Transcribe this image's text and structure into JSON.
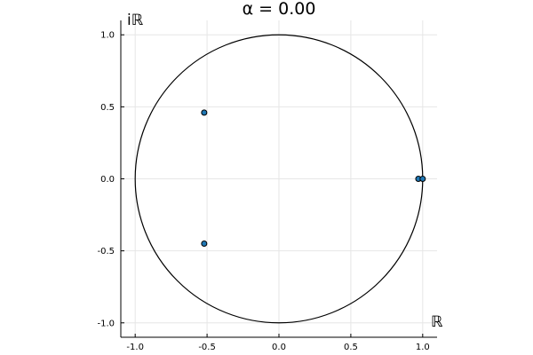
{
  "chart_data": {
    "type": "scatter",
    "title": "α = 0.00",
    "xlabel": "ℝ",
    "ylabel": "iℝ",
    "xlim": [
      -1.1,
      1.1
    ],
    "ylim": [
      -1.1,
      1.1
    ],
    "xticks": [
      -1.0,
      -0.5,
      0.0,
      0.5,
      1.0
    ],
    "xtick_labels": [
      "-1.0",
      "-0.5",
      "0.0",
      "0.5",
      "1.0"
    ],
    "yticks": [
      -1.0,
      -0.5,
      0.0,
      0.5,
      1.0
    ],
    "ytick_labels": [
      "-1.0",
      "-0.5",
      "0.0",
      "0.5",
      "1.0"
    ],
    "grid": true,
    "aspect": "equal",
    "unit_circle": {
      "center": [
        0,
        0
      ],
      "radius": 1
    },
    "series": [
      {
        "points": [
          {
            "x": -0.52,
            "y": 0.46
          },
          {
            "x": -0.52,
            "y": -0.45
          },
          {
            "x": 0.97,
            "y": 0.0
          },
          {
            "x": 1.0,
            "y": 0.0
          }
        ]
      }
    ],
    "colors": {
      "marker_fill": "#1f77b4",
      "marker_edge": "#000000",
      "circle": "#000000",
      "grid": "#e6e6e6",
      "axis": "#000000"
    }
  }
}
